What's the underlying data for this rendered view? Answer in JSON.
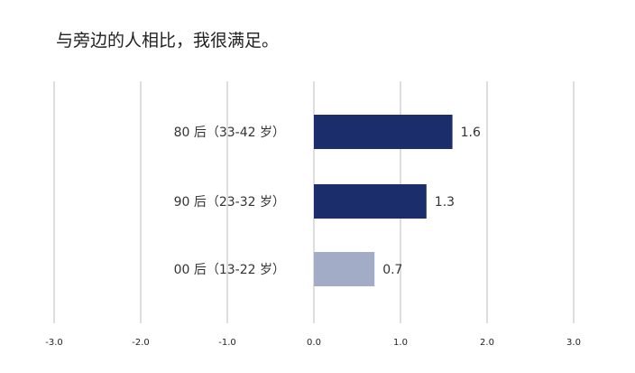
{
  "chart_data": {
    "type": "bar",
    "orientation": "horizontal",
    "title": "与旁边的人相比，我很满足。",
    "categories": [
      "80 后（33-42 岁）",
      "90 后（23-32 岁）",
      "00 后（13-22 岁）"
    ],
    "values": [
      1.6,
      1.3,
      0.7
    ],
    "value_labels": [
      "1.6",
      "1.3",
      "0.7"
    ],
    "bar_colors": [
      "#1c2d6b",
      "#1c2d6b",
      "#a3acc6"
    ],
    "xlim": [
      -3.0,
      3.0
    ],
    "xticks": [
      -3.0,
      -2.0,
      -1.0,
      0.0,
      1.0,
      2.0,
      3.0
    ],
    "xtick_labels": [
      "-3.0",
      "-2.0",
      "-1.0",
      "0.0",
      "1.0",
      "2.0",
      "3.0"
    ],
    "grid": "vertical",
    "grid_color": "#c8c8c8",
    "legend": "none"
  }
}
